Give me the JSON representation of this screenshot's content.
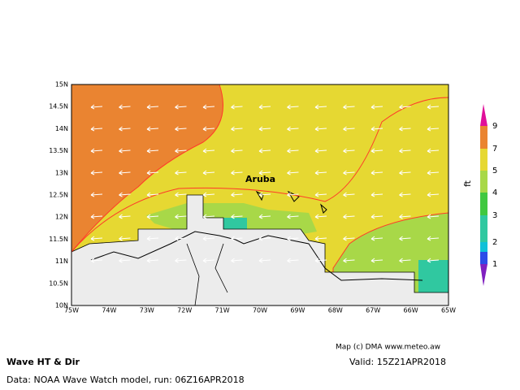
{
  "map": {
    "title": "Wave HT & Dir",
    "valid": "Valid: 15Z21APR2018",
    "source": "Data: NOAA Wave Watch model, run: 06Z16APR2018",
    "credit": "Map (c) DMA www.meteo.aw",
    "place_label": "Aruba",
    "lat_labels": [
      "15N",
      "14.5N",
      "14N",
      "13.5N",
      "13N",
      "12.5N",
      "12N",
      "11.5N",
      "11N",
      "10.5N",
      "10N"
    ],
    "lon_labels": [
      "75W",
      "74W",
      "73W",
      "72W",
      "71W",
      "70W",
      "69W",
      "68W",
      "67W",
      "66W",
      "65W"
    ],
    "colorbar": {
      "unit": "ft",
      "labels": [
        "9",
        "7",
        "5",
        "4",
        "3",
        "2",
        "1"
      ]
    }
  }
}
